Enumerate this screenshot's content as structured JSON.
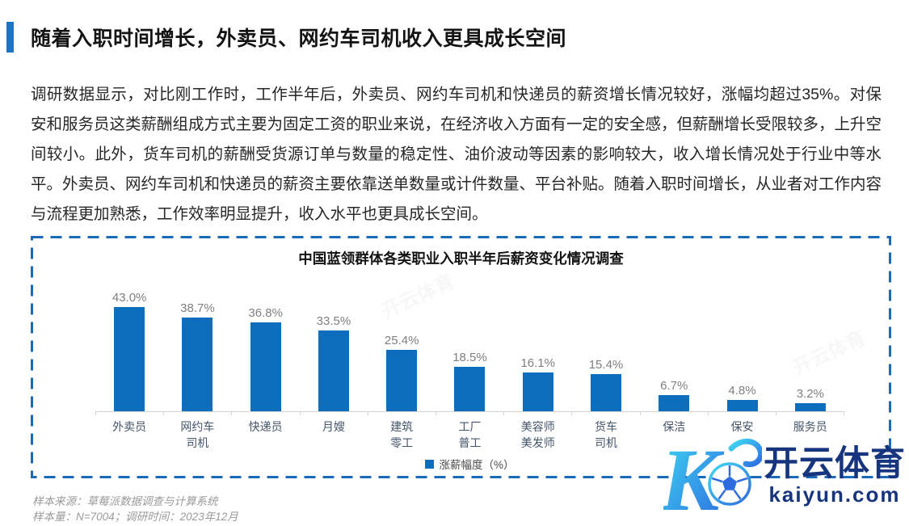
{
  "page": {
    "title": "随着入职时间增长，外卖员、网约车司机收入更具成长空间",
    "body_paragraph": "调研数据显示，对比刚工作时，工作半年后，外卖员、网约车司机和快递员的薪资增长情况较好，涨幅均超过35%。对保安和服务员这类薪酬组成方式主要为固定工资的职业来说，在经济收入方面有一定的安全感，但薪酬增长受限较多，上升空间较小。此外，货车司机的薪酬受货源订单与数量的稳定性、油价波动等因素的影响较大，收入增长情况处于行业中等水平。外卖员、网约车司机和快递员的薪资主要依靠送单数量或计件数量、平台补贴。随着入职时间增长，从业者对工作内容与流程更加熟悉，工作效率明显提升，收入水平也更具成长空间。"
  },
  "chart_data": {
    "type": "bar",
    "title": "中国蓝领群体各类职业入职半年后薪资变化情况调查",
    "categories": [
      "外卖员",
      "网约车\n司机",
      "快递员",
      "月嫂",
      "建筑\n零工",
      "工厂\n普工",
      "美容师\n美发师",
      "货车\n司机",
      "保洁",
      "保安",
      "服务员"
    ],
    "values": [
      43.0,
      38.7,
      36.8,
      33.5,
      25.4,
      18.5,
      16.1,
      15.4,
      6.7,
      4.8,
      3.2
    ],
    "value_labels": [
      "43.0%",
      "38.7%",
      "36.8%",
      "33.5%",
      "25.4%",
      "18.5%",
      "16.1%",
      "15.4%",
      "6.7%",
      "4.8%",
      "3.2%"
    ],
    "legend": [
      "涨薪幅度（%）"
    ],
    "legend_position": "bottom",
    "xlabel": "",
    "ylabel": "",
    "ylim": [
      0,
      45
    ],
    "grid": false,
    "bar_color": "#0E6EBE"
  },
  "footer": {
    "source_line": "样本来源：草莓派数据调查与计算系统",
    "sample_line": "样本量：N=7004；调研时间：2023年12月"
  },
  "watermark": {
    "brand_cn": "开云体育",
    "brand_domain": "kaiyun.com",
    "faint_text": "开云体育",
    "brand_color": "#17357E",
    "gradient_start": "#3FD9F2",
    "gradient_end": "#2E6BE0"
  },
  "colors": {
    "accent_bar": "#1C74C4",
    "chart_border": "#1A6AB8",
    "bar": "#0E6EBE",
    "value_label": "#7F7F7F",
    "category_label": "#44546A",
    "axis": "#D4D4D4"
  }
}
